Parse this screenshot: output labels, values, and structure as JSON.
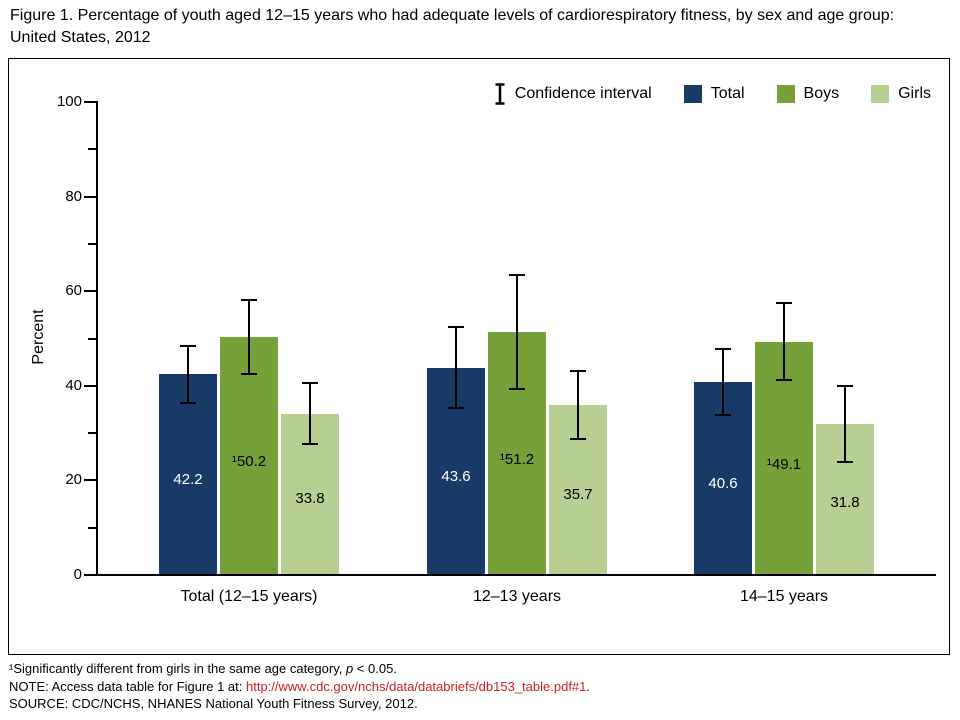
{
  "chart_data": {
    "type": "bar",
    "title": "Figure 1. Percentage of youth aged 12–15 years who had adequate levels of cardiorespiratory fitness, by sex and age group: United States, 2012",
    "categories": [
      "Total (12–15 years)",
      "12–13 years",
      "14–15 years"
    ],
    "series": [
      {
        "name": "Total",
        "color": "#173a66",
        "label_color": "#ffffff",
        "values": [
          42.2,
          43.6,
          40.6
        ],
        "labels": [
          "42.2",
          "43.6",
          "40.6"
        ],
        "ci_low": [
          36.2,
          35.2,
          33.6
        ],
        "ci_high": [
          48.2,
          52.3,
          47.5
        ]
      },
      {
        "name": "Boys",
        "color": "#76a03a",
        "label_color": "#000000",
        "values": [
          50.2,
          51.2,
          49.1
        ],
        "labels": [
          "¹50.2",
          "¹51.2",
          "¹49.1"
        ],
        "ci_low": [
          42.3,
          39.2,
          41.0
        ],
        "ci_high": [
          57.9,
          63.2,
          57.3
        ]
      },
      {
        "name": "Girls",
        "color": "#b8cf94",
        "label_color": "#000000",
        "values": [
          33.8,
          35.7,
          31.8
        ],
        "labels": [
          "33.8",
          "35.7",
          "31.8"
        ],
        "ci_low": [
          27.4,
          28.6,
          23.7
        ],
        "ci_high": [
          40.4,
          43.0,
          39.8
        ]
      }
    ],
    "ylabel": "Percent",
    "xlabel": "",
    "ylim": [
      0,
      100
    ],
    "yticks_major": [
      0,
      20,
      40,
      60,
      80,
      100
    ],
    "yticks_minor": [
      10,
      30,
      50,
      70,
      90
    ],
    "grid": false,
    "legend": {
      "position": "top-right",
      "ci_label": "Confidence interval",
      "entries": [
        "Total",
        "Boys",
        "Girls"
      ]
    }
  },
  "footnotes": {
    "sig_text": "¹Significantly different from girls in the same age category, ",
    "sig_p": "p",
    "sig_tail": " < 0.05.",
    "note_prefix": "NOTE: Access data table for Figure 1 at: ",
    "note_link": "http://www.cdc.gov/nchs/data/databriefs/db153_table.pdf#1",
    "note_suffix": ".",
    "source": "SOURCE: CDC/NCHS, NHANES National Youth Fitness Survey, 2012.",
    "link_color": "#cc2020"
  }
}
